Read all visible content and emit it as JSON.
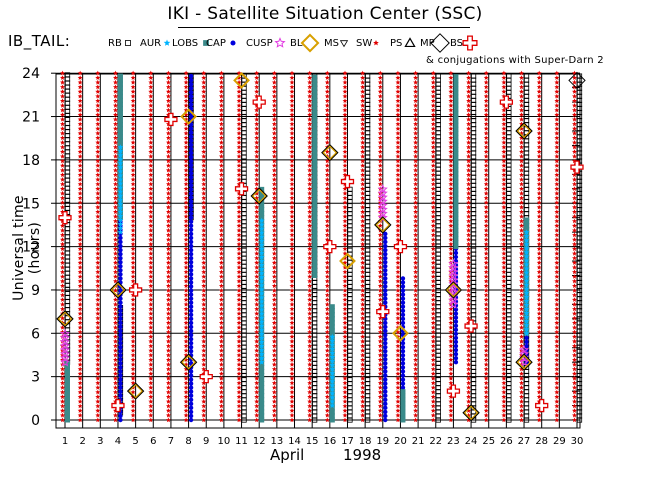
{
  "header": {
    "title": "IKI - Satellite Situation Center (SSC)",
    "dataset": "IB_TAIL:",
    "conjunctions_note": "& conjugations with Super-Darn 2"
  },
  "chart_data": {
    "type": "scatter",
    "title": "IKI - Satellite Situation Center (SSC)",
    "ylabel": "Universal time (hours)",
    "xlabel_month": "April",
    "xlabel_year": "1998",
    "xlim": [
      1,
      30
    ],
    "ylim": [
      0,
      24.8
    ],
    "x_ticks": [
      1,
      2,
      3,
      4,
      5,
      6,
      7,
      8,
      9,
      10,
      11,
      12,
      13,
      14,
      15,
      16,
      17,
      18,
      19,
      20,
      21,
      22,
      23,
      24,
      25,
      26,
      27,
      28,
      29,
      30
    ],
    "y_ticks": [
      0,
      3,
      6,
      9,
      12,
      15,
      18,
      21,
      24
    ],
    "grid": true,
    "legend": [
      {
        "code": "RB",
        "color": "#000000",
        "marker": "square"
      },
      {
        "code": "AUR",
        "color": "#00b4ff",
        "marker": "star"
      },
      {
        "code": "LOBS",
        "color": "#3a8a8a",
        "marker": "filled-square"
      },
      {
        "code": "CAP",
        "color": "#0000dd",
        "marker": "dot"
      },
      {
        "code": "CUSP",
        "color": "#e23de2",
        "marker": "star-outline"
      },
      {
        "code": "BL",
        "color": "#d8a000",
        "marker": "diamond"
      },
      {
        "code": "MS",
        "color": "#000000",
        "marker": "triangle-down"
      },
      {
        "code": "SW",
        "color": "#e00000",
        "marker": "star-red"
      },
      {
        "code": "PS",
        "color": "#000000",
        "marker": "triangle-up"
      },
      {
        "code": "MP",
        "color": "#000000",
        "marker": "diamond-outline"
      },
      {
        "code": "BS",
        "color": "#e00000",
        "marker": "cross"
      }
    ],
    "series": [
      {
        "name": "SW",
        "day_range": [
          1,
          30
        ],
        "note": "all days, full range"
      },
      {
        "name": "RB",
        "segments": [
          [
            1,
            4,
            24
          ],
          [
            4,
            0.5,
            8
          ],
          [
            8,
            14,
            24
          ],
          [
            11,
            0,
            24
          ],
          [
            15,
            0,
            24
          ],
          [
            17,
            0,
            16
          ],
          [
            18,
            0,
            24
          ],
          [
            22,
            0,
            24
          ],
          [
            24,
            0,
            24
          ],
          [
            26,
            0,
            24
          ],
          [
            27,
            0,
            24
          ],
          [
            30,
            0,
            24
          ]
        ]
      },
      {
        "name": "CAP",
        "segments": [
          [
            4,
            0,
            20
          ],
          [
            8,
            0,
            24
          ],
          [
            12,
            0,
            10
          ],
          [
            16,
            0,
            8
          ],
          [
            19,
            0,
            13
          ],
          [
            20,
            0,
            10
          ],
          [
            23,
            4,
            22
          ],
          [
            27,
            4,
            10
          ]
        ]
      },
      {
        "name": "LOBS",
        "segments": [
          [
            1,
            0,
            4
          ],
          [
            4,
            14,
            24
          ],
          [
            12,
            0,
            16
          ],
          [
            15,
            10,
            24
          ],
          [
            16,
            0,
            8
          ],
          [
            20,
            0,
            2
          ],
          [
            23,
            12,
            24
          ],
          [
            27,
            6,
            14
          ]
        ]
      },
      {
        "name": "AUR",
        "segments": [
          [
            4,
            13,
            19
          ],
          [
            12,
            4,
            14
          ],
          [
            16,
            1,
            6
          ],
          [
            27,
            6,
            13
          ]
        ]
      },
      {
        "name": "CUSP",
        "segments": [
          [
            1,
            4,
            6
          ],
          [
            19,
            14,
            16
          ],
          [
            23,
            8,
            11
          ],
          [
            27,
            4,
            5
          ]
        ]
      },
      {
        "name": "BL",
        "points": [
          [
            1,
            7
          ],
          [
            4,
            9
          ],
          [
            5,
            2
          ],
          [
            8,
            4
          ],
          [
            8,
            21
          ],
          [
            11,
            23.5
          ],
          [
            12,
            15.5
          ],
          [
            16,
            18.5
          ],
          [
            17,
            11
          ],
          [
            19,
            13.5
          ],
          [
            20,
            6
          ],
          [
            23,
            9
          ],
          [
            24,
            0.5
          ],
          [
            27,
            4
          ],
          [
            27,
            20
          ]
        ]
      },
      {
        "name": "MP",
        "points": [
          [
            1,
            7
          ],
          [
            4,
            9
          ],
          [
            5,
            2
          ],
          [
            8,
            4
          ],
          [
            12,
            15.5
          ],
          [
            16,
            18.5
          ],
          [
            19,
            13.5
          ],
          [
            23,
            9
          ],
          [
            24,
            0.5
          ],
          [
            27,
            4
          ],
          [
            27,
            20
          ],
          [
            30,
            23.5
          ]
        ]
      },
      {
        "name": "BS",
        "points": [
          [
            1,
            14
          ],
          [
            4,
            1
          ],
          [
            5,
            9
          ],
          [
            7,
            20.8
          ],
          [
            9,
            3
          ],
          [
            11,
            16
          ],
          [
            12,
            22
          ],
          [
            16,
            12
          ],
          [
            17,
            16.5
          ],
          [
            19,
            7.5
          ],
          [
            20,
            12
          ],
          [
            23,
            2
          ],
          [
            24,
            6.5
          ],
          [
            26,
            22
          ],
          [
            28,
            1
          ],
          [
            30,
            17.5
          ]
        ]
      }
    ]
  }
}
